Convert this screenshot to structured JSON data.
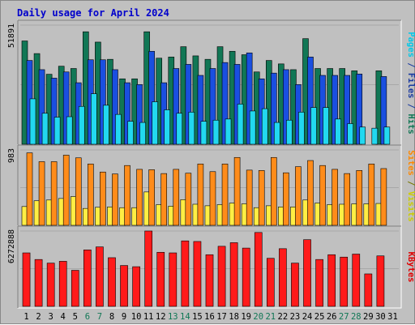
{
  "chart_data": {
    "type": "bar",
    "title": "Daily usage for April 2024",
    "categories": [
      "1",
      "2",
      "3",
      "4",
      "5",
      "6",
      "7",
      "8",
      "9",
      "10",
      "11",
      "12",
      "13",
      "14",
      "15",
      "16",
      "17",
      "18",
      "19",
      "20",
      "21",
      "22",
      "23",
      "24",
      "25",
      "26",
      "27",
      "28",
      "29",
      "30",
      "31"
    ],
    "weekend_days": [
      "6",
      "7",
      "13",
      "14",
      "20",
      "21",
      "27",
      "28"
    ],
    "panels": [
      {
        "name": "pages-files-hits",
        "ymax_label": "51891",
        "ymax": 51891,
        "side_label_parts": [
          {
            "text": "Pages",
            "color": "#00c8e8"
          },
          {
            "text": " / ",
            "color": "#1a3aa0"
          },
          {
            "text": "Files",
            "color": "#1a3aa0"
          },
          {
            "text": " / ",
            "color": "#1a3aa0"
          },
          {
            "text": "Hits",
            "color": "#117755"
          }
        ],
        "series": [
          {
            "name": "Hits",
            "color": "#117755",
            "values": [
              45000,
              39500,
              30500,
              34000,
              33000,
              49000,
              44500,
              37000,
              28500,
              28500,
              49000,
              37500,
              38000,
              42500,
              38500,
              37000,
              42500,
              40500,
              39000,
              31500,
              36500,
              35000,
              32500,
              46000,
              33000,
              33000,
              33000,
              32000,
              0,
              32000,
              0
            ]
          },
          {
            "name": "Files",
            "color": "#1a4fe0",
            "values": [
              36500,
              32500,
              28800,
              31500,
              26800,
              36800,
              36800,
              32500,
              26800,
              26000,
              40500,
              26800,
              33000,
              34800,
              30000,
              33000,
              35600,
              34800,
              39800,
              28500,
              31000,
              32500,
              26000,
              38000,
              30000,
              30000,
              30000,
              30600,
              0,
              29500,
              0
            ]
          },
          {
            "name": "Pages",
            "color": "#22d8f0",
            "values": [
              19800,
              13500,
              11800,
              12000,
              16500,
              22000,
              17000,
              13000,
              10000,
              9500,
              18500,
              15000,
              13500,
              14000,
              10000,
              10500,
              11000,
              17500,
              14500,
              15500,
              9500,
              10500,
              14000,
              16000,
              16000,
              11000,
              9000,
              7500,
              7000,
              7500,
              0
            ]
          }
        ]
      },
      {
        "name": "visits-sites",
        "ymax_label": "983",
        "ymax": 983,
        "side_label_parts": [
          {
            "text": "Sites",
            "color": "#ff8800"
          },
          {
            "text": " / ",
            "color": "#777700"
          },
          {
            "text": "Visits",
            "color": "#cccc00"
          }
        ],
        "series": [
          {
            "name": "Visits",
            "color": "#ffee44",
            "values": [
              245,
              320,
              330,
              350,
              375,
              220,
              235,
              240,
              230,
              230,
              435,
              270,
              250,
              335,
              275,
              255,
              270,
              290,
              280,
              230,
              255,
              240,
              240,
              330,
              290,
              270,
              275,
              280,
              280,
              285,
              0
            ]
          },
          {
            "name": "Sites",
            "color": "#ff8c1a",
            "values": [
              945,
              830,
              830,
              915,
              880,
              800,
              695,
              670,
              780,
              730,
              725,
              675,
              730,
              680,
              800,
              700,
              800,
              885,
              720,
              715,
              885,
              685,
              765,
              845,
              780,
              730,
              675,
              715,
              800,
              740,
              0
            ]
          }
        ]
      },
      {
        "name": "kbytes",
        "ymax_label": "6272888",
        "ymax": 6272888,
        "side_label_parts": [
          {
            "text": "KBytes",
            "color": "#e00000"
          }
        ],
        "series": [
          {
            "name": "KBytes",
            "color": "#ff1a1a",
            "values": [
              4450000,
              3900000,
              3600000,
              3750000,
              3000000,
              4700000,
              4950000,
              4050000,
              3400000,
              3300000,
              6272888,
              4500000,
              4450000,
              5450000,
              5400000,
              4300000,
              5000000,
              5300000,
              4850000,
              6150000,
              4000000,
              4800000,
              3600000,
              5550000,
              3900000,
              4300000,
              4100000,
              4350000,
              2700000,
              4200000,
              0
            ]
          }
        ]
      }
    ]
  }
}
